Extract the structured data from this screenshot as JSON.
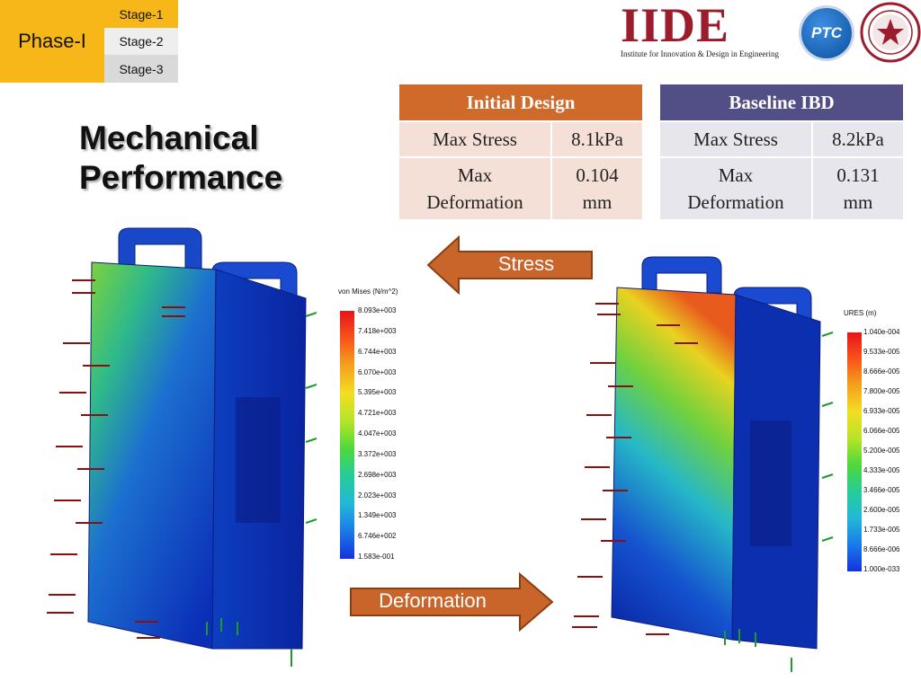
{
  "nav": {
    "phase_label": "Phase-I",
    "stages": [
      "Stage-1",
      "Stage-2",
      "Stage-3"
    ]
  },
  "title_lines": [
    "Mechanical",
    "Performance"
  ],
  "logos": {
    "iide_letters": "IIDE",
    "iide_subtitle": "Institute for Innovation & Design in Engineering",
    "ptc_text": "PTC"
  },
  "tables": {
    "initial": {
      "header": "Initial Design",
      "rows": [
        {
          "label": "Max Stress",
          "value": "8.1kPa"
        },
        {
          "label_line1": "Max",
          "label_line2": "Deformation",
          "value_line1": "0.104",
          "value_line2": "mm"
        }
      ]
    },
    "baseline": {
      "header": "Baseline IBD",
      "rows": [
        {
          "label": "Max Stress",
          "value": "8.2kPa"
        },
        {
          "label_line1": "Max",
          "label_line2": "Deformation",
          "value_line1": "0.131",
          "value_line2": "mm"
        }
      ]
    }
  },
  "arrows": {
    "stress_label": "Stress",
    "deformation_label": "Deformation",
    "color": "#c9652a"
  },
  "stress_legend": {
    "title": "von Mises (N/m^2)",
    "ticks": [
      "8.093e+003",
      "7.418e+003",
      "6.744e+003",
      "6.070e+003",
      "5.395e+003",
      "4.721e+003",
      "4.047e+003",
      "3.372e+003",
      "2.698e+003",
      "2.023e+003",
      "1.349e+003",
      "6.746e+002",
      "1.583e-001"
    ]
  },
  "deformation_legend": {
    "title": "URES (m)",
    "ticks": [
      "1.040e-004",
      "9.533e-005",
      "8.666e-005",
      "7.800e-005",
      "6.933e-005",
      "6.066e-005",
      "5.200e-005",
      "4.333e-005",
      "3.466e-005",
      "2.600e-005",
      "1.733e-005",
      "8.666e-006",
      "1.000e-033"
    ]
  }
}
